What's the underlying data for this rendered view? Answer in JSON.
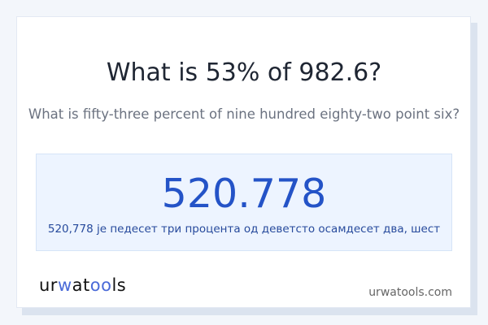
{
  "question": {
    "title": "What is 53% of 982.6?",
    "subtitle": "What is fifty-three percent of nine hundred eighty-two point six?"
  },
  "result": {
    "value": "520.778",
    "words": "520,778 је педесет три процента од деветсто осамдесет два, шест"
  },
  "footer": {
    "logo": {
      "part1": "ur",
      "part2": "w",
      "part3": "at",
      "part4": "oo",
      "part5": "ls"
    },
    "domain": "urwatools.com"
  },
  "colors": {
    "accent": "#2453c7",
    "background": "#f3f6fb",
    "result_bg": "#edf4ff"
  }
}
